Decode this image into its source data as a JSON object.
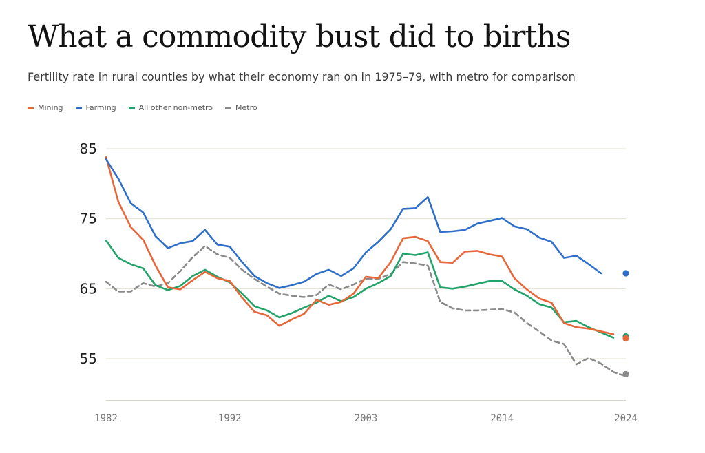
{
  "chart_data": {
    "type": "line",
    "title": "What a commodity bust did to births",
    "subtitle": "Fertility rate in rural counties by what their economy ran on in 1975–79, with metro for comparison",
    "x": [
      1982,
      1983,
      1984,
      1985,
      1986,
      1987,
      1988,
      1989,
      1990,
      1991,
      1992,
      1993,
      1994,
      1995,
      1996,
      1997,
      1998,
      1999,
      2000,
      2001,
      2002,
      2003,
      2004,
      2005,
      2006,
      2007,
      2008,
      2009,
      2010,
      2011,
      2012,
      2013,
      2014,
      2015,
      2016,
      2017,
      2018,
      2019,
      2020,
      2021,
      2022,
      2023,
      2024
    ],
    "xlim": [
      1982,
      2024
    ],
    "ylim": [
      49,
      85
    ],
    "x_ticks": [
      1982,
      1992,
      2003,
      2014,
      2024
    ],
    "y_ticks": [
      55,
      65,
      75,
      85
    ],
    "grid": true,
    "legend_position": "top-left",
    "series": [
      {
        "name": "Mining",
        "color": "#e8673a",
        "dashed": false,
        "values": [
          83.8,
          77.4,
          73.8,
          72.0,
          68.3,
          65.2,
          64.9,
          66.2,
          67.4,
          66.5,
          66.1,
          63.7,
          61.7,
          61.2,
          59.7,
          60.6,
          61.4,
          63.4,
          62.7,
          63.1,
          64.3,
          66.7,
          66.5,
          68.8,
          72.2,
          72.4,
          71.8,
          68.8,
          68.7,
          70.3,
          70.4,
          69.9,
          69.6,
          66.5,
          64.9,
          63.6,
          63.0,
          60.1,
          59.5,
          59.3,
          58.5
        ],
        "x": [
          1982,
          1983,
          1984,
          1985,
          1986,
          1987,
          1988,
          1989,
          1990,
          1991,
          1992,
          1993,
          1994,
          1995,
          1996,
          1997,
          1998,
          1999,
          2000,
          2001,
          2002,
          2003,
          2004,
          2005,
          2006,
          2007,
          2008,
          2009,
          2010,
          2011,
          2012,
          2013,
          2014,
          2015,
          2016,
          2017,
          2018,
          2019,
          2020,
          2021,
          2023
        ]
      },
      {
        "name": "Farming",
        "color": "#2e6fc9",
        "dashed": false,
        "values": [
          83.5,
          80.7,
          77.2,
          75.9,
          72.5,
          70.8,
          71.5,
          71.8,
          73.4,
          71.3,
          71.0,
          68.8,
          66.8,
          65.8,
          65.1,
          65.5,
          66.0,
          67.1,
          67.7,
          66.8,
          67.9,
          70.2,
          71.7,
          73.5,
          76.4,
          76.5,
          78.1,
          73.1,
          73.2,
          73.4,
          74.3,
          74.7,
          75.1,
          73.9,
          73.5,
          72.3,
          71.7,
          69.4,
          69.7,
          68.5,
          67.2
        ],
        "x": [
          1982,
          1983,
          1984,
          1985,
          1986,
          1987,
          1988,
          1989,
          1990,
          1991,
          1992,
          1993,
          1994,
          1995,
          1996,
          1997,
          1998,
          1999,
          2000,
          2001,
          2002,
          2003,
          2004,
          2005,
          2006,
          2007,
          2008,
          2009,
          2010,
          2011,
          2012,
          2013,
          2014,
          2015,
          2016,
          2017,
          2018,
          2019,
          2020,
          2021,
          2022
        ]
      },
      {
        "name": "All other non-metro",
        "color": "#22a36a",
        "dashed": false,
        "values": [
          71.9,
          69.4,
          68.5,
          67.9,
          65.5,
          64.8,
          65.4,
          66.8,
          67.7,
          66.7,
          65.9,
          64.3,
          62.5,
          61.9,
          60.9,
          61.5,
          62.3,
          63.0,
          64.0,
          63.2,
          63.8,
          65.0,
          65.8,
          66.8,
          70.0,
          69.8,
          70.2,
          65.2,
          65.0,
          65.3,
          65.7,
          66.1,
          66.1,
          64.9,
          64.0,
          62.8,
          62.3,
          60.2,
          60.4,
          59.5,
          58.0
        ],
        "x": [
          1982,
          1983,
          1984,
          1985,
          1986,
          1987,
          1988,
          1989,
          1990,
          1991,
          1992,
          1993,
          1994,
          1995,
          1996,
          1997,
          1998,
          1999,
          2000,
          2001,
          2002,
          2003,
          2004,
          2005,
          2006,
          2007,
          2008,
          2009,
          2010,
          2011,
          2012,
          2013,
          2014,
          2015,
          2016,
          2017,
          2018,
          2019,
          2020,
          2021,
          2023
        ]
      },
      {
        "name": "Metro",
        "color": "#8a8a8a",
        "dashed": true,
        "values": [
          66.0,
          64.6,
          64.6,
          65.8,
          65.3,
          65.8,
          67.5,
          69.5,
          71.1,
          69.9,
          69.4,
          67.7,
          66.4,
          65.3,
          64.3,
          64.0,
          63.8,
          64.1,
          65.6,
          64.9,
          65.6,
          66.4,
          66.4,
          67.1,
          68.8,
          68.6,
          68.3,
          63.1,
          62.2,
          61.9,
          61.9,
          62.0,
          62.1,
          61.6,
          60.1,
          58.9,
          57.6,
          57.1,
          54.2,
          55.1,
          54.3,
          53.1,
          52.5
        ],
        "x": [
          1982,
          1983,
          1984,
          1985,
          1986,
          1987,
          1988,
          1989,
          1990,
          1991,
          1992,
          1993,
          1994,
          1995,
          1996,
          1997,
          1998,
          1999,
          2000,
          2001,
          2002,
          2003,
          2004,
          2005,
          2006,
          2007,
          2008,
          2009,
          2010,
          2011,
          2012,
          2013,
          2014,
          2015,
          2016,
          2017,
          2018,
          2019,
          2020,
          2021,
          2022,
          2023,
          2024
        ]
      }
    ],
    "end_points": [
      {
        "series": "Farming",
        "x": 2024,
        "y": 67.2,
        "color": "#2e6fc9"
      },
      {
        "series": "All other non-metro",
        "x": 2024,
        "y": 58.2,
        "color": "#22a36a"
      },
      {
        "series": "Mining",
        "x": 2024,
        "y": 57.9,
        "color": "#e8673a"
      },
      {
        "series": "Metro",
        "x": 2024,
        "y": 52.8,
        "color": "#8a8a8a"
      }
    ]
  }
}
